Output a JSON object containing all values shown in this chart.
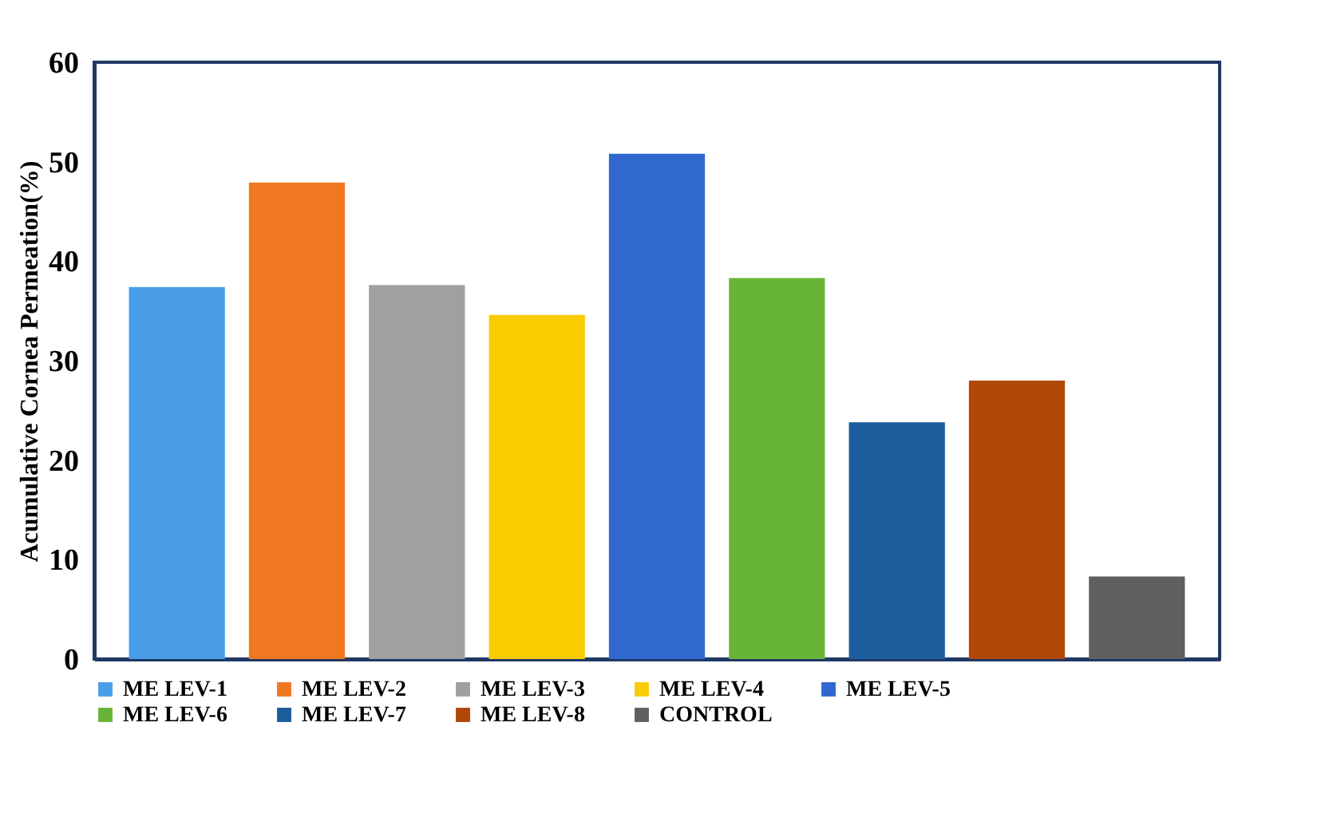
{
  "chart_data": {
    "type": "bar",
    "ylabel": "Acumulative Cornea  Permeation(%)",
    "categories": [
      null
    ],
    "series": [
      {
        "name": "ME LEV-1",
        "color": "#4a9ee8",
        "values": [
          37.4
        ]
      },
      {
        "name": "ME LEV-2",
        "color": "#f07820",
        "values": [
          47.9
        ]
      },
      {
        "name": "ME LEV-3",
        "color": "#a0a0a0",
        "values": [
          37.6
        ]
      },
      {
        "name": "ME LEV-4",
        "color": "#f8cc00",
        "values": [
          34.6
        ]
      },
      {
        "name": "ME LEV-5",
        "color": "#3068d0",
        "values": [
          50.8
        ]
      },
      {
        "name": "ME LEV-6",
        "color": "#68b438",
        "values": [
          38.3
        ]
      },
      {
        "name": "ME LEV-7",
        "color": "#1a5c9c",
        "values": [
          23.8
        ]
      },
      {
        "name": "ME LEV-8",
        "color": "#b04808",
        "values": [
          28.0
        ]
      },
      {
        "name": "CONTROL",
        "color": "#606060",
        "values": [
          8.3
        ]
      }
    ],
    "ylim": [
      0,
      60
    ],
    "yticks": [
      0,
      10,
      20,
      30,
      40,
      50,
      60
    ],
    "grid": false,
    "legend": "bottom",
    "tick_labels": "y"
  }
}
